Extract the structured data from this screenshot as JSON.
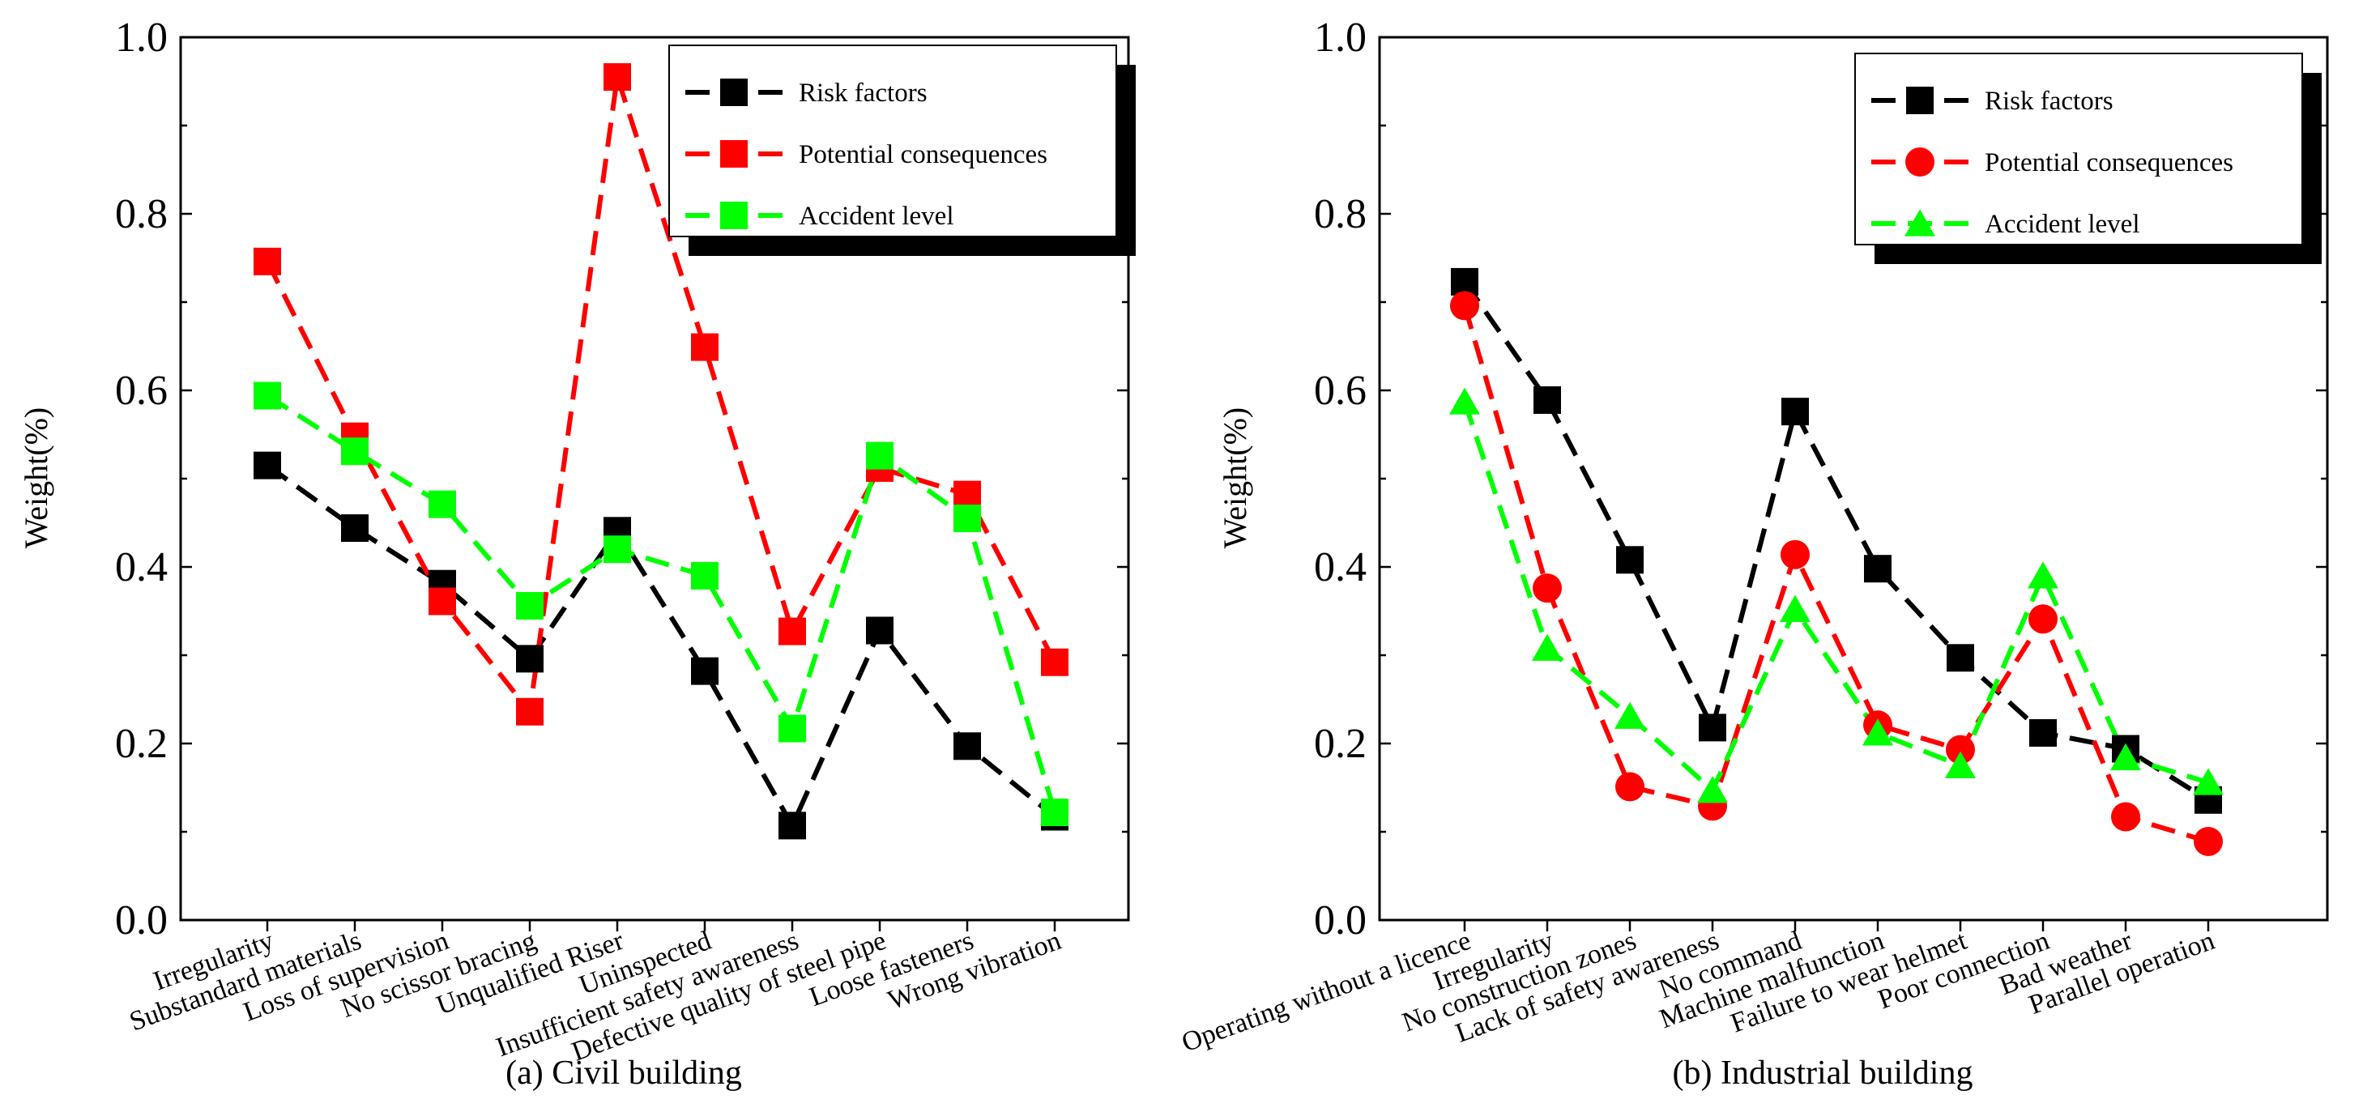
{
  "colors": {
    "risk": "#000000",
    "consequence": "#ff0000",
    "accident": "#00ff00",
    "axis": "#000000",
    "background": "#ffffff"
  },
  "chart_data": [
    {
      "type": "line",
      "caption": "(a) Civil building",
      "title": "",
      "xlabel": "",
      "ylabel": "Weight(%)",
      "ylim": [
        0.0,
        1.0
      ],
      "yticks": [
        "0.0",
        "0.2",
        "0.4",
        "0.6",
        "0.8",
        "1.0"
      ],
      "grid": false,
      "legend_position": "top-right",
      "categories": [
        "Irregularity",
        "Substandard materials",
        "Loss of supervision",
        "No scissor bracing",
        "Unqualified Riser",
        "Uninspected",
        "Insufficient safety awareness",
        "Defective quality of steel pipe",
        "Loose fasteners",
        "Wrong vibration"
      ],
      "series": [
        {
          "name": "Risk factors",
          "color": "#000000",
          "marker": "square",
          "values": [
            0.515,
            0.444,
            0.381,
            0.296,
            0.441,
            0.282,
            0.107,
            0.328,
            0.197,
            0.117
          ]
        },
        {
          "name": "Potential consequences",
          "color": "#ff0000",
          "marker": "square",
          "values": [
            0.746,
            0.548,
            0.361,
            0.236,
            0.955,
            0.649,
            0.327,
            0.512,
            0.482,
            0.292
          ]
        },
        {
          "name": "Accident level",
          "color": "#00ff00",
          "marker": "square",
          "values": [
            0.594,
            0.531,
            0.471,
            0.356,
            0.42,
            0.39,
            0.217,
            0.526,
            0.455,
            0.122
          ]
        }
      ]
    },
    {
      "type": "line",
      "caption": "(b) Industrial building",
      "title": "",
      "xlabel": "",
      "ylabel": "Weight(%)",
      "ylim": [
        0.0,
        1.0
      ],
      "yticks": [
        "0.0",
        "0.2",
        "0.4",
        "0.6",
        "0.8",
        "1.0"
      ],
      "grid": false,
      "legend_position": "top-right",
      "categories": [
        "Operating without a licence",
        "Irregularity",
        "No construction zones",
        "Lack of safety awareness",
        "No command",
        "Machine malfunction",
        "Failure to wear helmet",
        "Poor connection",
        "Bad weather",
        "Parallel operation"
      ],
      "series": [
        {
          "name": "Risk factors",
          "color": "#000000",
          "marker": "square",
          "values": [
            0.723,
            0.589,
            0.408,
            0.218,
            0.576,
            0.398,
            0.297,
            0.212,
            0.194,
            0.136
          ]
        },
        {
          "name": "Potential consequences",
          "color": "#ff0000",
          "marker": "circle",
          "values": [
            0.696,
            0.376,
            0.151,
            0.129,
            0.414,
            0.221,
            0.193,
            0.341,
            0.117,
            0.089
          ]
        },
        {
          "name": "Accident level",
          "color": "#00ff00",
          "marker": "triangle",
          "values": [
            0.587,
            0.308,
            0.231,
            0.147,
            0.352,
            0.212,
            0.175,
            0.39,
            0.184,
            0.156
          ]
        }
      ]
    }
  ]
}
